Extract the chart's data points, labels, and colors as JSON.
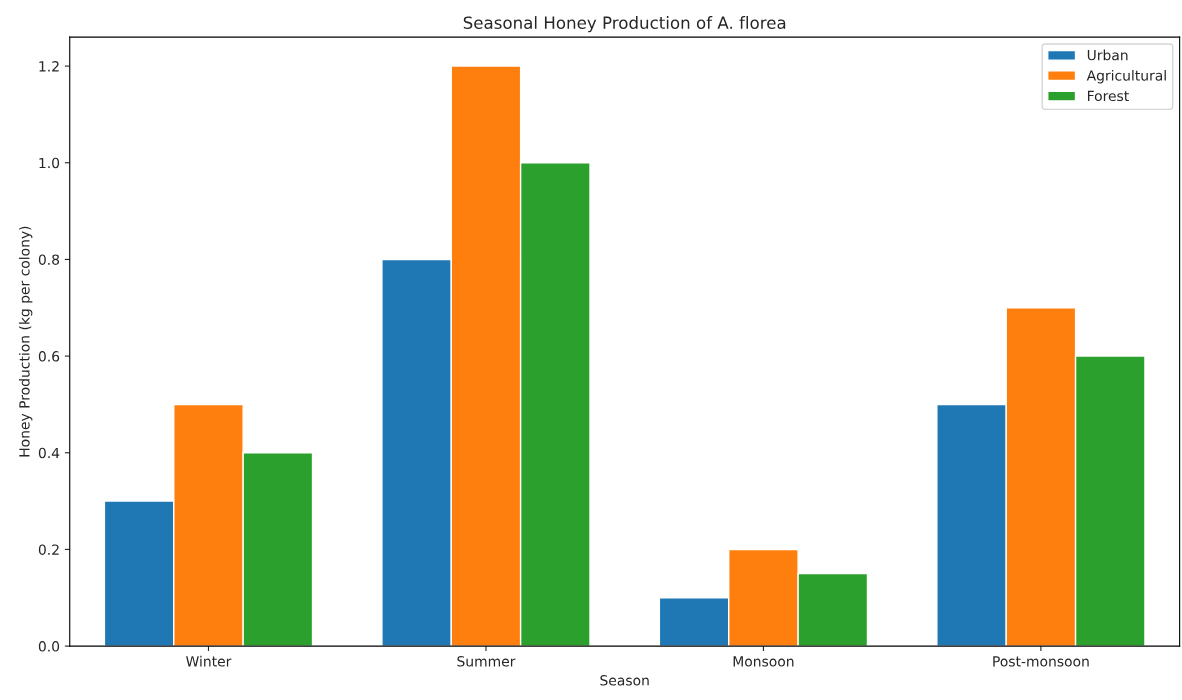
{
  "chart_data": {
    "type": "bar",
    "title": "Seasonal Honey Production of A. florea",
    "xlabel": "Season",
    "ylabel": "Honey Production (kg per colony)",
    "categories": [
      "Winter",
      "Summer",
      "Monsoon",
      "Post-monsoon"
    ],
    "series": [
      {
        "name": "Urban",
        "color": "#1f77b4",
        "values": [
          0.3,
          0.8,
          0.1,
          0.5
        ]
      },
      {
        "name": "Agricultural",
        "color": "#ff7f0e",
        "values": [
          0.5,
          1.2,
          0.2,
          0.7
        ]
      },
      {
        "name": "Forest",
        "color": "#2ca02c",
        "values": [
          0.4,
          1.0,
          0.15,
          0.6
        ]
      }
    ],
    "ylim": [
      0,
      1.26
    ],
    "yticks": [
      {
        "value": 0,
        "label": "0.0"
      },
      {
        "value": 0.2,
        "label": "0.2"
      },
      {
        "value": 0.4,
        "label": "0.4"
      },
      {
        "value": 0.6,
        "label": "0.6"
      },
      {
        "value": 0.8,
        "label": "0.8"
      },
      {
        "value": 1.0,
        "label": "1.0"
      },
      {
        "value": 1.2,
        "label": "1.2"
      }
    ],
    "grid": false,
    "legend": "top right"
  }
}
